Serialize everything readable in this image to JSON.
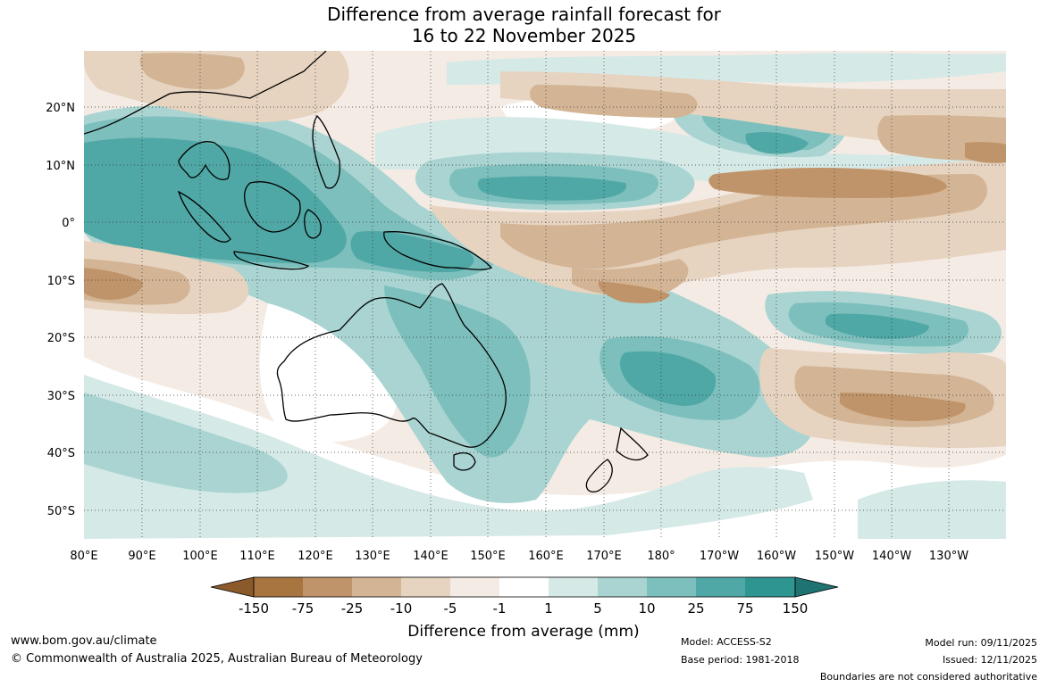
{
  "title": {
    "line1": "Difference from average rainfall forecast for",
    "line2": "16 to 22 November 2025"
  },
  "map": {
    "lon_labels": [
      "80°E",
      "90°E",
      "100°E",
      "110°E",
      "120°E",
      "130°E",
      "140°E",
      "150°E",
      "160°E",
      "170°E",
      "180°",
      "170°W",
      "160°W",
      "150°W",
      "140°W",
      "130°W"
    ],
    "lat_labels": [
      "20°N",
      "10°N",
      "0°",
      "10°S",
      "20°S",
      "30°S",
      "40°S",
      "50°S"
    ]
  },
  "colorbar": {
    "ticks": [
      "-150",
      "-75",
      "-25",
      "-10",
      "-5",
      "-1",
      "1",
      "5",
      "10",
      "25",
      "75",
      "150"
    ],
    "colors": [
      "#8a5a2b",
      "#a87440",
      "#c0946a",
      "#d3b595",
      "#e6d3c0",
      "#f4ebe4",
      "#ffffff",
      "#d5e9e7",
      "#a9d4d1",
      "#7cbfbc",
      "#4fa8a5",
      "#2e9591",
      "#1f7370"
    ],
    "label": "Difference from average (mm)"
  },
  "footer": {
    "url": "www.bom.gov.au/climate",
    "copyright": "© Commonwealth of Australia 2025, Australian Bureau of Meteorology",
    "model": "Model: ACCESS-S2",
    "base_period": "Base period: 1981-2018",
    "model_run": "Model run: 09/11/2025",
    "issued": "Issued: 12/11/2025",
    "disclaimer": "Boundaries are not considered authoritative"
  }
}
